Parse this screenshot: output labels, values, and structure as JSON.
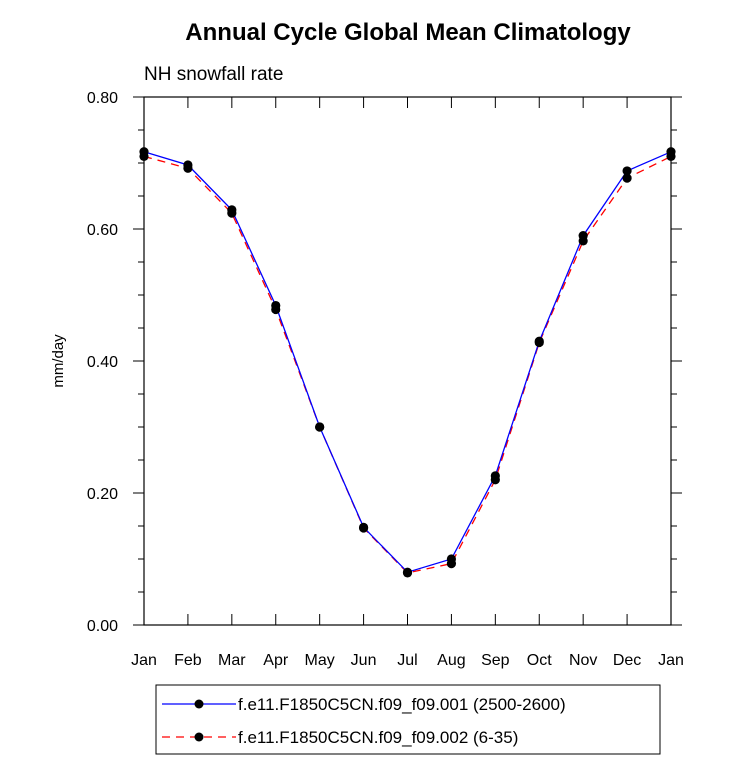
{
  "chart_data": {
    "type": "line",
    "title": "Annual Cycle Global Mean Climatology",
    "subtitle": "NH snowfall rate",
    "xlabel": "",
    "ylabel": "mm/day",
    "categories": [
      "Jan",
      "Feb",
      "Mar",
      "Apr",
      "May",
      "Jun",
      "Jul",
      "Aug",
      "Sep",
      "Oct",
      "Nov",
      "Dec",
      "Jan"
    ],
    "ylim": [
      0,
      0.8
    ],
    "yticks": [
      "0.00",
      "0.20",
      "0.40",
      "0.60",
      "0.80"
    ],
    "grid": false,
    "legend_position": "bottom",
    "series": [
      {
        "name": "f.e11.F1850C5CN.f09_f09.001 (2500-2600)",
        "color": "#0000ff",
        "style": "solid",
        "values": [
          0.717,
          0.697,
          0.629,
          0.484,
          0.3,
          0.148,
          0.08,
          0.1,
          0.226,
          0.43,
          0.59,
          0.688,
          0.717
        ]
      },
      {
        "name": "f.e11.F1850C5CN.f09_f09.002 (6-35)",
        "color": "#ff0000",
        "style": "dashed",
        "values": [
          0.71,
          0.692,
          0.624,
          0.478,
          0.3,
          0.147,
          0.079,
          0.093,
          0.22,
          0.428,
          0.582,
          0.677,
          0.71
        ]
      }
    ]
  }
}
